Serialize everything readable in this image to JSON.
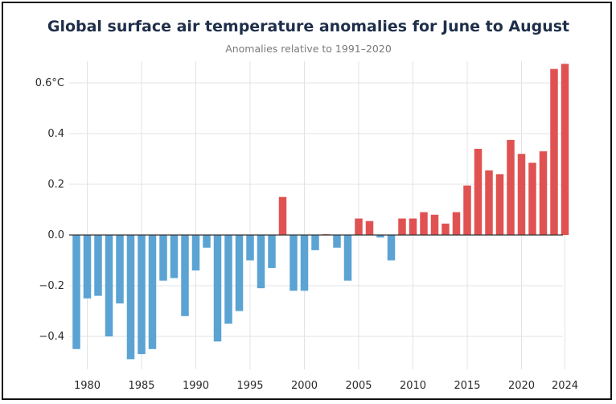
{
  "colors": {
    "negative": "#5ba3d3",
    "positive": "#e05252",
    "grid": "#e3e3e3",
    "zero": "#333333"
  },
  "chart_data": {
    "type": "bar",
    "title": "Global surface air temperature anomalies for June to August",
    "subtitle": "Anomalies relative to 1991–2020",
    "xlabel": "",
    "ylabel": "",
    "ylim": [
      -0.5,
      0.68
    ],
    "grid": true,
    "legend": "none",
    "y_ticks": [
      {
        "value": 0.6,
        "label": "0.6°C"
      },
      {
        "value": 0.4,
        "label": "0.4"
      },
      {
        "value": 0.2,
        "label": "0.2"
      },
      {
        "value": 0.0,
        "label": "0.0"
      },
      {
        "value": -0.2,
        "label": "−0.2"
      },
      {
        "value": -0.4,
        "label": "−0.4"
      }
    ],
    "x_ticks": [
      "1980",
      "1985",
      "1990",
      "1995",
      "2000",
      "2005",
      "2010",
      "2015",
      "2020",
      "2024"
    ],
    "categories": [
      1979,
      1980,
      1981,
      1982,
      1983,
      1984,
      1985,
      1986,
      1987,
      1988,
      1989,
      1990,
      1991,
      1992,
      1993,
      1994,
      1995,
      1996,
      1997,
      1998,
      1999,
      2000,
      2001,
      2002,
      2003,
      2004,
      2005,
      2006,
      2007,
      2008,
      2009,
      2010,
      2011,
      2012,
      2013,
      2014,
      2015,
      2016,
      2017,
      2018,
      2019,
      2020,
      2021,
      2022,
      2023,
      2024
    ],
    "values": [
      -0.45,
      -0.25,
      -0.24,
      -0.4,
      -0.27,
      -0.49,
      -0.47,
      -0.45,
      -0.18,
      -0.17,
      -0.32,
      -0.14,
      -0.05,
      -0.42,
      -0.35,
      -0.3,
      -0.1,
      -0.21,
      -0.13,
      0.15,
      -0.22,
      -0.22,
      -0.06,
      0.003,
      -0.05,
      -0.18,
      0.065,
      0.055,
      -0.01,
      -0.1,
      0.065,
      0.065,
      0.09,
      0.08,
      0.045,
      0.09,
      0.195,
      0.34,
      0.255,
      0.24,
      0.375,
      0.32,
      0.285,
      0.33,
      0.655,
      0.675
    ]
  }
}
